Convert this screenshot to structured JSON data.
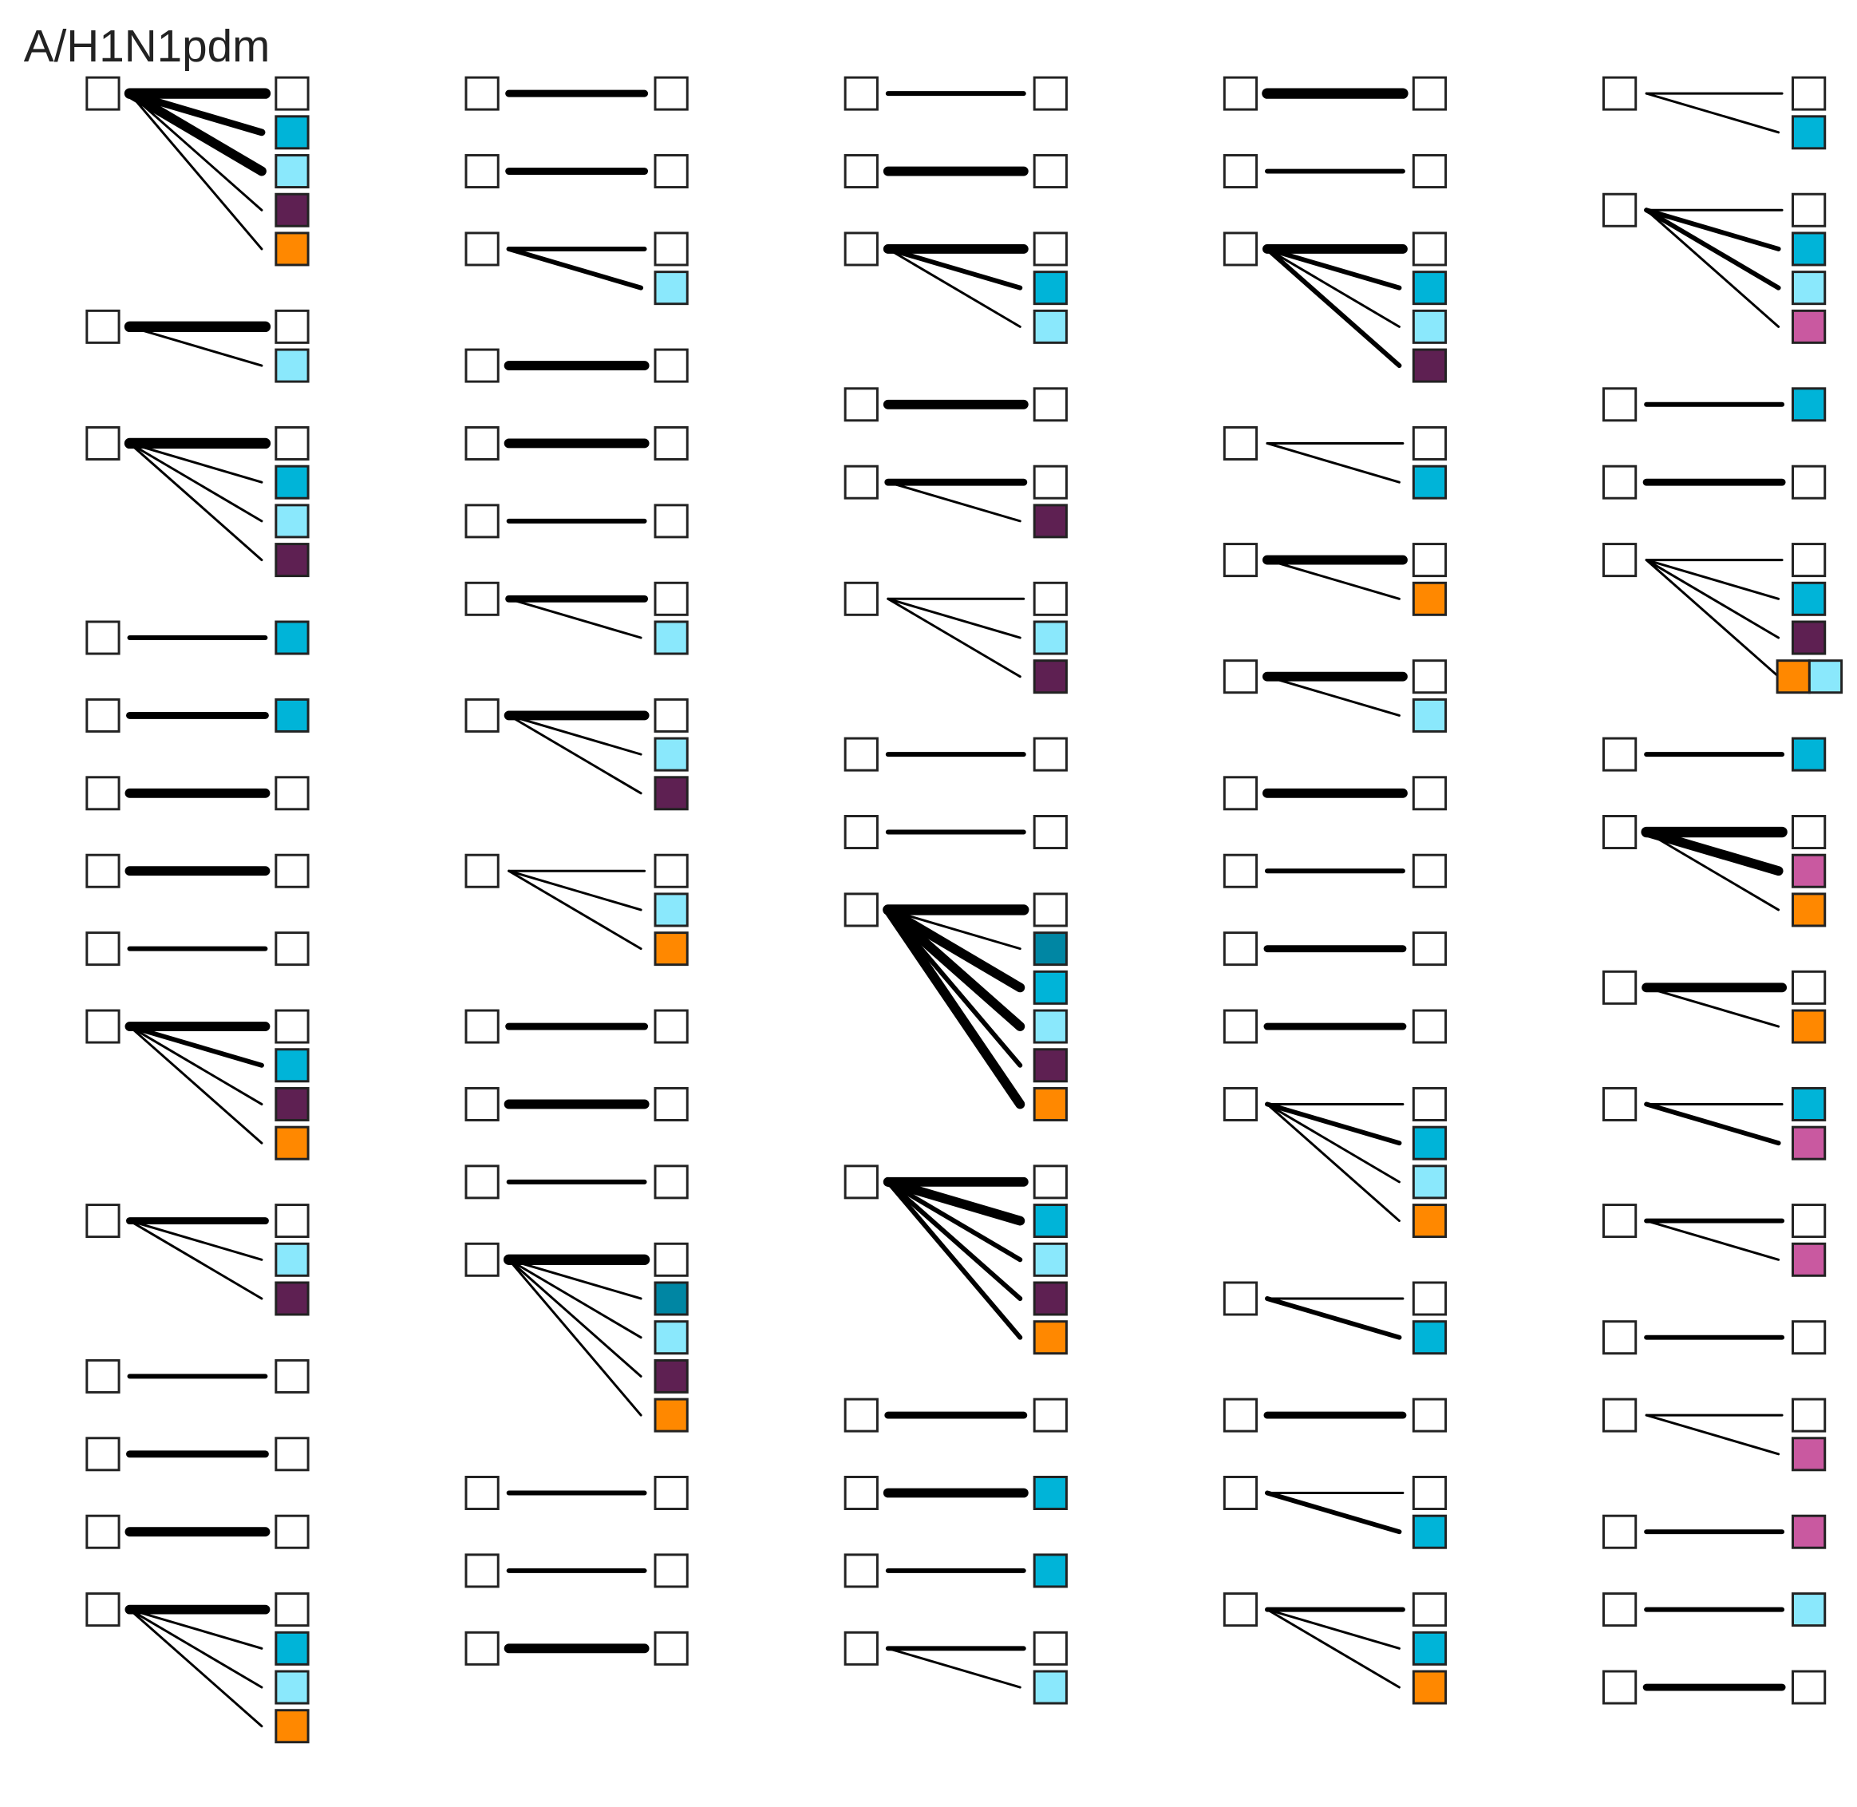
{
  "header": {
    "title": "A/H1N1pdm"
  }
}
